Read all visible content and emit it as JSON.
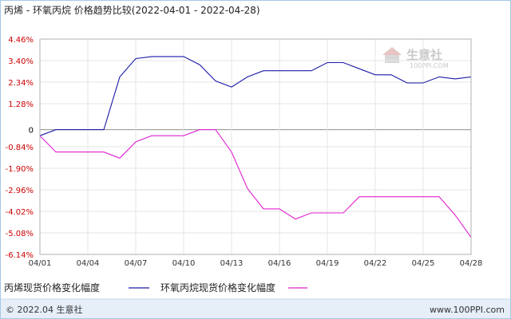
{
  "chart_data": {
    "type": "line",
    "title": "丙烯 - 环氧丙烷 价格趋势比较(2022-04-01 - 2022-04-28)",
    "x": [
      "04/01",
      "04/02",
      "04/03",
      "04/04",
      "04/05",
      "04/06",
      "04/07",
      "04/08",
      "04/09",
      "04/10",
      "04/11",
      "04/12",
      "04/13",
      "04/14",
      "04/15",
      "04/16",
      "04/17",
      "04/18",
      "04/19",
      "04/20",
      "04/21",
      "04/22",
      "04/23",
      "04/24",
      "04/25",
      "04/26",
      "04/27",
      "04/28"
    ],
    "xticks": [
      "04/01",
      "04/04",
      "04/07",
      "04/10",
      "04/13",
      "04/16",
      "04/19",
      "04/22",
      "04/25",
      "04/28"
    ],
    "yticks": [
      "4.46%",
      "3.40%",
      "2.34%",
      "1.28%",
      "0",
      "-0.84%",
      "-1.90%",
      "-2.96%",
      "-4.02%",
      "-5.08%",
      "-6.14%"
    ],
    "ytick_values": [
      4.46,
      3.4,
      2.34,
      1.28,
      0,
      -0.84,
      -1.9,
      -2.96,
      -4.02,
      -5.08,
      -6.14
    ],
    "ylim": [
      -6.14,
      4.46
    ],
    "grid": true,
    "legend_position": "bottom-left",
    "series": [
      {
        "name": "丙烯现货价格变化幅度",
        "color": "#1a1aa6",
        "values": [
          -0.3,
          0,
          0,
          0,
          0,
          2.6,
          3.5,
          3.6,
          3.6,
          3.6,
          3.2,
          2.4,
          2.1,
          2.6,
          2.9,
          2.9,
          2.9,
          2.9,
          3.3,
          3.3,
          3.0,
          2.7,
          2.7,
          2.3,
          2.3,
          2.6,
          2.5,
          2.6
        ]
      },
      {
        "name": "环氧丙烷现货价格变化幅度",
        "color": "#e020d0",
        "values": [
          -0.3,
          -1.1,
          -1.1,
          -1.1,
          -1.1,
          -1.4,
          -0.6,
          -0.3,
          -0.3,
          -0.3,
          0,
          0,
          -1.1,
          -2.9,
          -3.9,
          -3.9,
          -4.4,
          -4.1,
          -4.1,
          -4.1,
          -3.3,
          -3.3,
          -3.3,
          -3.3,
          -3.3,
          -3.3,
          -4.2,
          -5.3
        ]
      }
    ]
  },
  "watermark": {
    "brand": "生意社",
    "site": "100PPI.COM"
  },
  "footer": {
    "left": "© 2022.04 生意社",
    "right": "www.100PPI.com"
  }
}
